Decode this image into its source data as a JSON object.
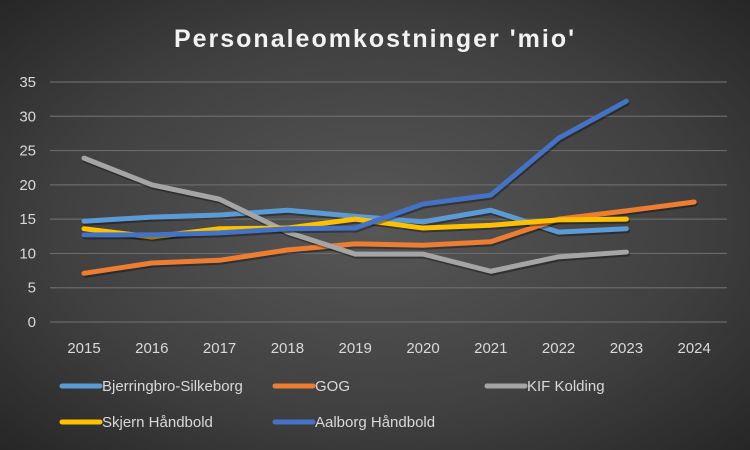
{
  "chart_data": {
    "type": "line",
    "title": "Personaleomkostninger 'mio'",
    "xlabel": "",
    "ylabel": "",
    "x": [
      "2015",
      "2016",
      "2017",
      "2018",
      "2019",
      "2020",
      "2021",
      "2022",
      "2023",
      "2024"
    ],
    "ylim": [
      0,
      35
    ],
    "yticks": [
      "0",
      "5",
      "10",
      "15",
      "20",
      "25",
      "30",
      "35"
    ],
    "grid": true,
    "legend_position": "bottom",
    "series": [
      {
        "name": "Bjerringbro-Silkeborg",
        "color": "#5b9bd5",
        "values": [
          14.7,
          15.3,
          15.6,
          16.3,
          15.4,
          14.6,
          16.3,
          13.1,
          13.6,
          null
        ]
      },
      {
        "name": "GOG",
        "color": "#ed7d31",
        "values": [
          7.1,
          8.6,
          9.0,
          10.5,
          11.4,
          11.2,
          11.7,
          15.0,
          16.2,
          17.5
        ]
      },
      {
        "name": "KIF Kolding",
        "color": "#a5a5a5",
        "values": [
          23.9,
          20.0,
          17.9,
          13.1,
          9.9,
          9.9,
          7.4,
          9.5,
          10.2,
          null
        ]
      },
      {
        "name": "Skjern Håndbold",
        "color": "#ffc000",
        "values": [
          13.6,
          12.4,
          13.6,
          13.7,
          15.0,
          13.7,
          14.1,
          14.9,
          15.0,
          null
        ]
      },
      {
        "name": "Aalborg Håndbold",
        "color": "#4472c4",
        "values": [
          12.7,
          12.7,
          13.0,
          13.6,
          13.7,
          17.2,
          18.5,
          26.8,
          32.2,
          null
        ]
      }
    ]
  }
}
